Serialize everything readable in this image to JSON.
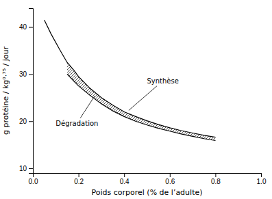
{
  "chart_data": {
    "type": "line",
    "xlabel": "Poids corporel (% de l’adulte)",
    "ylabel": "g protéine / kg⁰·⁷⁵ / jour",
    "xlim": [
      0.0,
      1.0
    ],
    "ylim": [
      9,
      44
    ],
    "xticks": [
      {
        "value": 0.0,
        "label": "0.0"
      },
      0.2,
      0.4,
      0.6,
      0.8,
      {
        "value": 1.0,
        "label": "1.0"
      }
    ],
    "yticks": [
      10,
      20,
      30,
      40
    ],
    "grid": false,
    "series": [
      {
        "color": "#000000",
        "x": [
          0.05,
          0.08,
          0.12,
          0.15,
          0.18,
          0.2,
          0.25,
          0.3,
          0.35,
          0.4,
          0.45,
          0.5,
          0.55,
          0.6,
          0.65,
          0.7,
          0.75,
          0.8
        ],
        "values": [
          41.5,
          38.5,
          35.0,
          32.5,
          30.8,
          29.5,
          27.0,
          25.0,
          23.4,
          22.0,
          21.0,
          20.1,
          19.3,
          18.6,
          18.0,
          17.5,
          17.0,
          16.6
        ]
      },
      {
        "color": "#000000",
        "x": [
          0.15,
          0.18,
          0.2,
          0.25,
          0.3,
          0.35,
          0.4,
          0.45,
          0.5,
          0.55,
          0.6,
          0.65,
          0.7,
          0.75,
          0.8
        ],
        "values": [
          30.0,
          28.5,
          27.5,
          25.5,
          23.7,
          22.2,
          21.0,
          20.0,
          19.2,
          18.5,
          17.9,
          17.3,
          16.8,
          16.3,
          15.9
        ]
      }
    ],
    "annotations": [
      {
        "text": "Synthèse",
        "x": 0.42,
        "y": 22.3,
        "text_x": 0.5,
        "text_y": 28.5
      },
      {
        "text": "Dégradation",
        "x": 0.27,
        "y": 25.3,
        "text_x": 0.1,
        "text_y": 19.5
      }
    ]
  }
}
